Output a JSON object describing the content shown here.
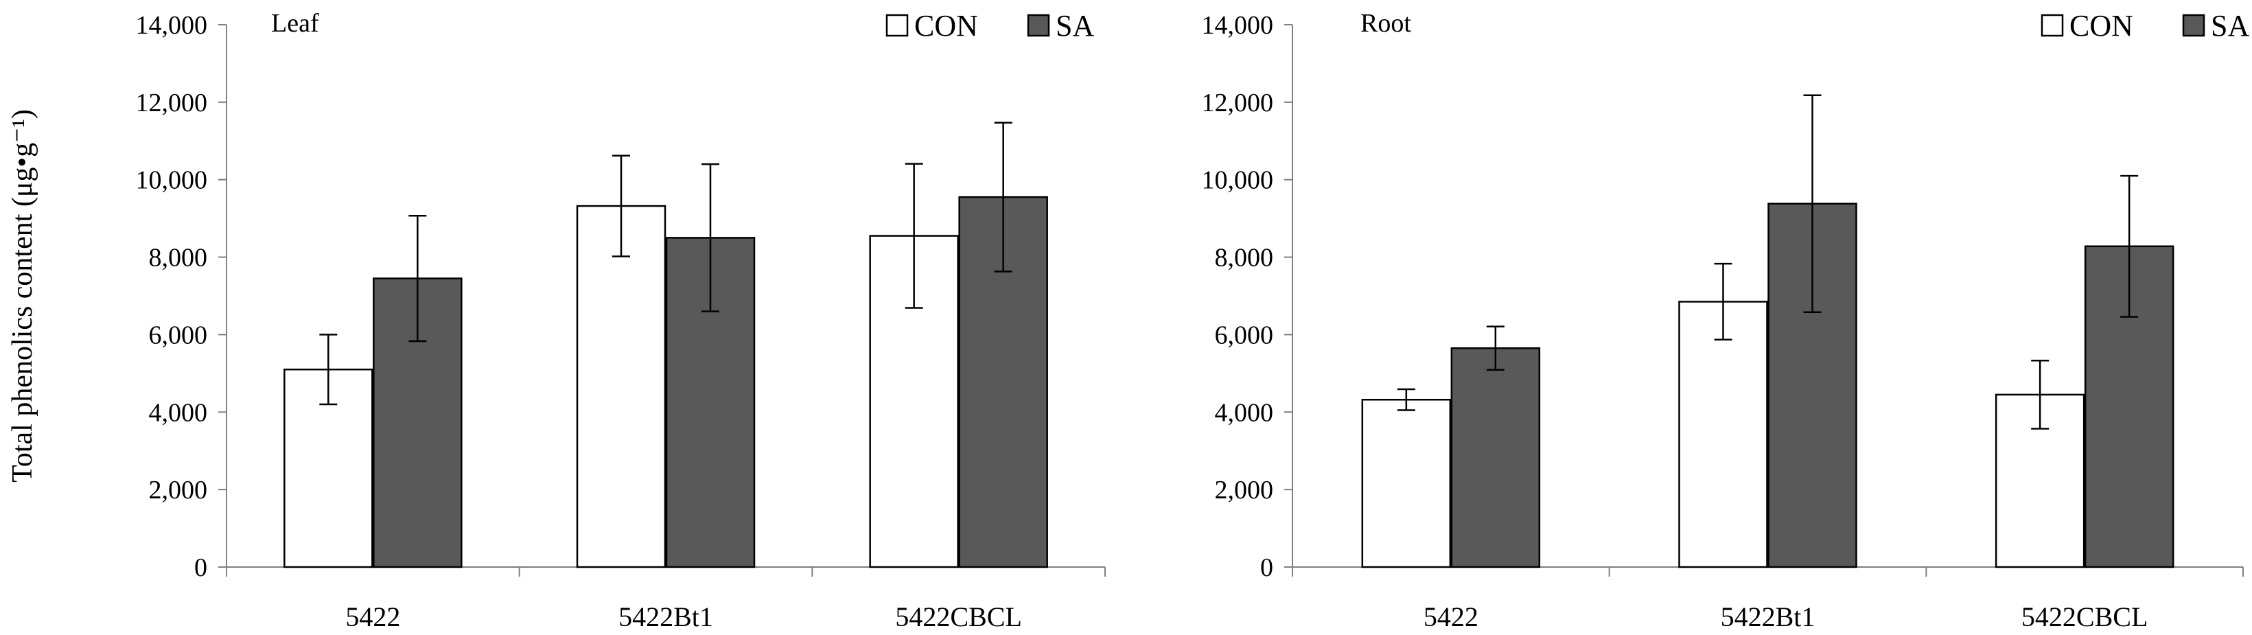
{
  "chart_data": [
    {
      "type": "bar",
      "title": "Leaf",
      "ylabel": "Total phenolics content (μg•g⁻¹)",
      "xlabel": "",
      "ylim": [
        0,
        14000
      ],
      "yticks": [
        0,
        2000,
        4000,
        6000,
        8000,
        10000,
        12000,
        14000
      ],
      "ytick_labels": [
        "0",
        "2,000",
        "4,000",
        "6,000",
        "8,000",
        "10,000",
        "12,000",
        "14,000"
      ],
      "categories": [
        "5422",
        "5422Bt1",
        "5422CBCL"
      ],
      "legend": [
        "CON",
        "SA"
      ],
      "legend_position": "top-right",
      "series": [
        {
          "name": "CON",
          "color": "#ffffff",
          "values": [
            5100,
            9320,
            8550
          ],
          "errors": [
            900,
            1300,
            1860
          ]
        },
        {
          "name": "SA",
          "color": "#595959",
          "values": [
            7450,
            8500,
            9550
          ],
          "errors": [
            1620,
            1900,
            1920
          ]
        }
      ]
    },
    {
      "type": "bar",
      "title": "Root",
      "ylabel": "",
      "xlabel": "",
      "ylim": [
        0,
        14000
      ],
      "yticks": [
        0,
        2000,
        4000,
        6000,
        8000,
        10000,
        12000,
        14000
      ],
      "ytick_labels": [
        "0",
        "2,000",
        "4,000",
        "6,000",
        "8,000",
        "10,000",
        "12,000",
        "14,000"
      ],
      "categories": [
        "5422",
        "5422Bt1",
        "5422CBCL"
      ],
      "legend": [
        "CON",
        "SA"
      ],
      "legend_position": "top-right",
      "series": [
        {
          "name": "CON",
          "color": "#ffffff",
          "values": [
            4320,
            6850,
            4450
          ],
          "errors": [
            270,
            980,
            880
          ]
        },
        {
          "name": "SA",
          "color": "#595959",
          "values": [
            5650,
            9380,
            8280
          ],
          "errors": [
            560,
            2800,
            1820
          ]
        }
      ]
    }
  ]
}
